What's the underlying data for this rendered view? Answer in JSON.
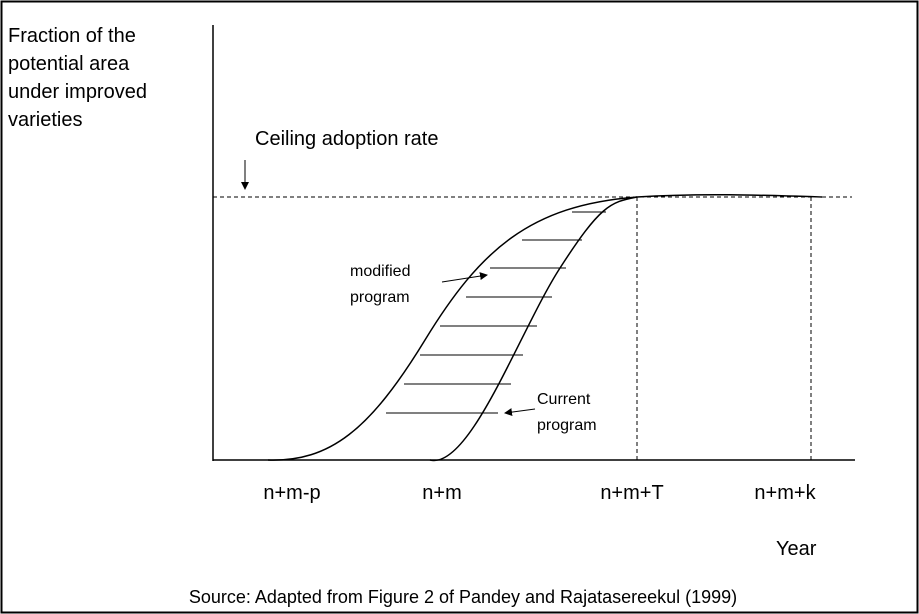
{
  "y_axis_label": [
    "Fraction of the",
    "potential area",
    "under improved",
    "varieties"
  ],
  "ceiling_label": "Ceiling adoption rate",
  "modified_label": [
    "modified",
    "program"
  ],
  "current_label": [
    "Current",
    "program"
  ],
  "x_labels": [
    "n+m-p",
    "n+m",
    "n+m+T",
    "n+m+k"
  ],
  "x_axis_label": "Year",
  "source": "Source: Adapted from Figure 2 of Pandey and Rajatasereekul (1999)"
}
